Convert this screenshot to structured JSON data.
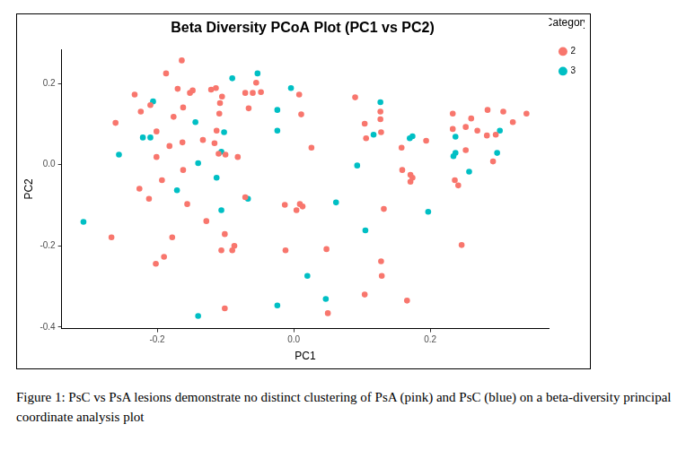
{
  "chart_data": {
    "type": "scatter",
    "title": "Beta Diversity PCoA Plot (PC1 vs PC2)",
    "x_label": "PC1",
    "y_label": "PC2",
    "legend_title": "Category",
    "legend": "right",
    "grid": false,
    "caption": "Figure 1: PsC vs PsA lesions demonstrate no distinct clustering of PsA (pink) and PsC (blue) on a beta-diversity principal coordinate analysis plot",
    "xlim": [
      -0.34,
      0.374
    ],
    "ylim": [
      -0.404,
      0.284
    ],
    "xticks": [
      -0.2,
      {
        "value": 0,
        "label": "0.0"
      },
      0.2
    ],
    "yticks": [
      -0.4,
      -0.2,
      {
        "value": 0,
        "label": "0.0"
      },
      0.2
    ],
    "series": [
      {
        "name": "2",
        "color": "#F8766D",
        "marker": "circle",
        "x": [
          -0.267,
          -0.261,
          -0.233,
          -0.224,
          -0.21,
          -0.226,
          -0.212,
          -0.201,
          -0.201,
          -0.187,
          -0.182,
          -0.176,
          -0.17,
          -0.164,
          -0.162,
          -0.162,
          -0.163,
          -0.193,
          -0.19,
          -0.202,
          -0.178,
          -0.152,
          -0.148,
          -0.156,
          -0.133,
          -0.128,
          -0.121,
          -0.114,
          -0.108,
          -0.109,
          -0.113,
          -0.11,
          -0.106,
          -0.101,
          -0.101,
          -0.105,
          -0.116,
          -0.1,
          -0.087,
          -0.09,
          -0.082,
          -0.071,
          -0.071,
          -0.066,
          -0.06,
          -0.055,
          -0.048,
          -0.013,
          -0.012,
          0.004,
          0.008,
          0.011,
          0.009,
          0.013,
          0.026,
          0.048,
          0.05,
          0.09,
          0.104,
          0.106,
          0.104,
          0.127,
          0.127,
          0.128,
          0.128,
          0.129,
          0.132,
          0.158,
          0.159,
          0.166,
          0.171,
          0.171,
          0.174,
          0.194,
          0.233,
          0.233,
          0.236,
          0.241,
          0.246,
          0.252,
          0.252,
          0.26,
          0.269,
          0.283,
          0.284,
          0.296,
          0.307,
          0.292,
          0.321,
          0.341
        ],
        "y": [
          -0.179,
          0.103,
          0.173,
          0.131,
          0.147,
          -0.059,
          -0.084,
          0.019,
          0.082,
          0.225,
          0.046,
          0.118,
          0.187,
          0.257,
          0.141,
          -0.013,
          0.055,
          -0.038,
          -0.227,
          -0.244,
          -0.179,
          0.177,
          0.183,
          -0.097,
          0.061,
          -0.139,
          0.185,
          0.189,
          0.152,
          0.126,
          0.084,
          0.027,
          -0.211,
          -0.354,
          -0.171,
          0.168,
          0.053,
          0.025,
          -0.2,
          -0.211,
          0.019,
          -0.08,
          0.177,
          0.139,
          0.177,
          0.202,
          0.179,
          -0.099,
          -0.211,
          -0.112,
          0.173,
          0.124,
          -0.097,
          -0.103,
          0.042,
          -0.208,
          -0.366,
          0.166,
          0.101,
          0.065,
          -0.32,
          0.131,
          0.112,
          0.08,
          -0.238,
          -0.274,
          -0.109,
          0.042,
          -0.013,
          -0.335,
          -0.025,
          -0.042,
          -0.032,
          0.059,
          0.126,
          0.088,
          -0.038,
          -0.051,
          -0.198,
          0.036,
          0.093,
          0.114,
          0.084,
          0.072,
          0.135,
          0.074,
          0.131,
          0.008,
          0.105,
          0.126
        ]
      },
      {
        "name": "3",
        "color": "#00BFC4",
        "marker": "circle",
        "x": [
          -0.308,
          -0.256,
          -0.221,
          -0.21,
          -0.206,
          -0.171,
          -0.144,
          -0.14,
          -0.14,
          -0.113,
          -0.106,
          -0.106,
          -0.102,
          -0.09,
          -0.067,
          -0.053,
          -0.024,
          -0.024,
          -0.004,
          -0.024,
          0.02,
          0.047,
          0.062,
          0.093,
          0.105,
          0.117,
          0.127,
          0.17,
          0.174,
          0.197,
          0.237,
          0.237,
          0.257,
          0.298,
          0.302,
          0.234
        ],
        "y": [
          -0.141,
          0.025,
          0.067,
          0.067,
          0.156,
          -0.063,
          0.105,
          0.004,
          -0.373,
          -0.032,
          -0.112,
          0.032,
          0.08,
          0.213,
          -0.084,
          0.225,
          0.135,
          0.084,
          0.189,
          -0.347,
          -0.274,
          -0.331,
          -0.093,
          -0.002,
          -0.162,
          0.074,
          0.154,
          0.065,
          0.07,
          -0.116,
          0.069,
          0.029,
          -0.017,
          0.029,
          0.084,
          0.021
        ]
      }
    ]
  }
}
